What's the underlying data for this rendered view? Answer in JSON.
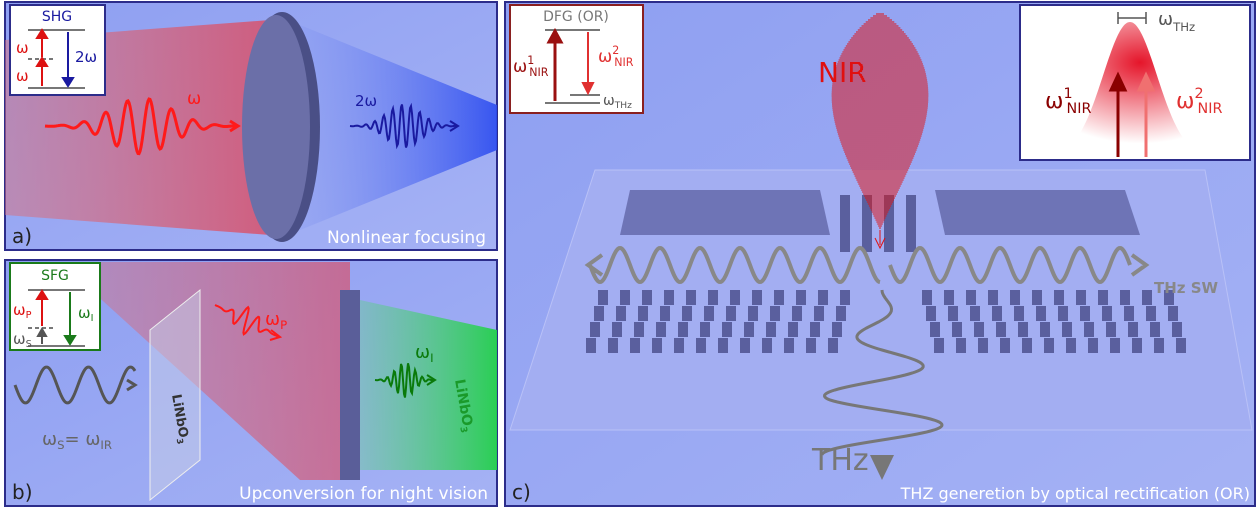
{
  "panel_a": {
    "inset_title": "SHG",
    "inset_omega_1": "ω",
    "inset_omega_2": "ω",
    "inset_2omega": "2ω",
    "input_beam": "ω",
    "output_beam": "2ω",
    "label": "a)",
    "caption": "Nonlinear focusing"
  },
  "panel_b": {
    "inset_title": "SFG",
    "inset_pump": {
      "symbol": "ω",
      "sub": "P"
    },
    "inset_signal": {
      "symbol": "ω",
      "sub": "S"
    },
    "inset_idler": {
      "symbol": "ω",
      "sub": "I"
    },
    "pump_beam": {
      "symbol": "ω",
      "sub": "P"
    },
    "idler_beam": {
      "symbol": "ω",
      "sub": "I"
    },
    "signal_beam": {
      "symbol": "ω",
      "sub": "S",
      "equals": "= ",
      "symbol2": "ω",
      "sub2": "IR"
    },
    "crystal_left": {
      "text": "LiNbO",
      "sub": "3"
    },
    "crystal_right": {
      "text": "LiNbO",
      "sub": "3"
    },
    "label": "b)",
    "caption": "Upconversion for night vision"
  },
  "panel_c": {
    "inset_title": "DFG (OR)",
    "inset_nir1": {
      "symbol": "ω",
      "sup": "1",
      "sub": "NIR"
    },
    "inset_nir2": {
      "symbol": "ω",
      "sup": "2",
      "sub": "NIR"
    },
    "inset_thz": {
      "symbol": "ω",
      "sub": "THz"
    },
    "nir_label": "NIR",
    "spectrum_thz": {
      "symbol": "ω",
      "sub": "THz"
    },
    "spectrum_nir1": {
      "symbol": "ω",
      "sup": "1",
      "sub": "NIR"
    },
    "spectrum_nir2": {
      "symbol": "ω",
      "sup": "2",
      "sub": "NIR"
    },
    "surface_wave": "THz SW",
    "thz_label": "THz",
    "label": "c)",
    "caption": "THZ generetion by optical rectification (OR)"
  }
}
